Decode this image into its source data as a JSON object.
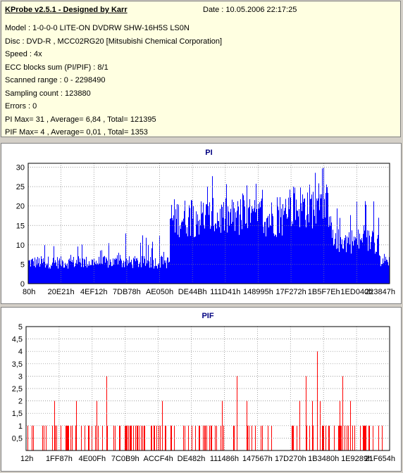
{
  "header": {
    "title": "KProbe v2.5.1 - Designed by Karr",
    "date": "Date : 10.05.2006 22:17:25",
    "lines": [
      "Model : 1-0-0-0 LITE-ON DVDRW SHW-16H5S  LS0N",
      "Disc : DVD-R , MCC02RG20 [Mitsubishi Chemical Corporation]",
      "Speed : 4x",
      "ECC blocks sum (PI/PIF) : 8/1",
      "Scanned range : 0 - 2298490",
      "Sampling count : 123880",
      "Errors : 0",
      "PI Max= 31 , Average= 6,84 , Total= 121395",
      "PIF Max= 4 , Average= 0,01 , Total= 1353"
    ]
  },
  "colors": {
    "pi": "#0000ff",
    "pif": "#ff0000",
    "grid": "#808080",
    "info_bg": "#ffffe1",
    "title": "#000080"
  },
  "chart_data": [
    {
      "type": "bar",
      "title": "PI",
      "ylim": [
        0,
        31
      ],
      "yticks": [
        "0",
        "5",
        "10",
        "15",
        "20",
        "25",
        "30"
      ],
      "ytick_values": [
        0,
        5,
        10,
        15,
        20,
        25,
        30
      ],
      "xtick_labels": [
        "80h",
        "20E21h",
        "4EF12h",
        "7DB78h",
        "AE050h",
        "DE44Bh",
        "111D41h",
        "148995h",
        "17F272h",
        "1B5F7Eh",
        "1ED040h",
        "223847h"
      ],
      "x_range": [
        "80h",
        "223847h"
      ],
      "grid": true,
      "profile": [
        {
          "from": 0.0,
          "to": 0.39,
          "base": 5.5,
          "spikes_to": 13
        },
        {
          "from": 0.39,
          "to": 0.53,
          "base": 17,
          "spikes_to": 29
        },
        {
          "from": 0.53,
          "to": 0.72,
          "base": 17,
          "spikes_to": 26
        },
        {
          "from": 0.72,
          "to": 0.84,
          "base": 20,
          "spikes_to": 31
        },
        {
          "from": 0.84,
          "to": 1.0,
          "base": 11,
          "spikes_to": 22
        }
      ],
      "max": 31,
      "average": 6.84
    },
    {
      "type": "bar",
      "title": "PIF",
      "ylim": [
        0,
        5
      ],
      "yticks": [
        "0,5",
        "1",
        "1,5",
        "2",
        "2,5",
        "3",
        "3,5",
        "4",
        "4,5",
        "5"
      ],
      "ytick_values": [
        0.5,
        1,
        1.5,
        2,
        2.5,
        3,
        3.5,
        4,
        4.5,
        5
      ],
      "xtick_labels": [
        "12h",
        "1FF87h",
        "4E00Fh",
        "7C0B9h",
        "ACCF4h",
        "DE482h",
        "111486h",
        "147567h",
        "17D270h",
        "1B3480h",
        "1E9289h",
        "21F654h"
      ],
      "x_range": [
        "12h",
        "21F654h"
      ],
      "grid": true,
      "max": 4,
      "average": 0.01,
      "notable_peaks": [
        {
          "pos": 0.22,
          "value": 3
        },
        {
          "pos": 0.58,
          "value": 3
        },
        {
          "pos": 0.8,
          "value": 4
        },
        {
          "pos": 0.77,
          "value": 3
        },
        {
          "pos": 0.87,
          "value": 3
        }
      ]
    }
  ]
}
